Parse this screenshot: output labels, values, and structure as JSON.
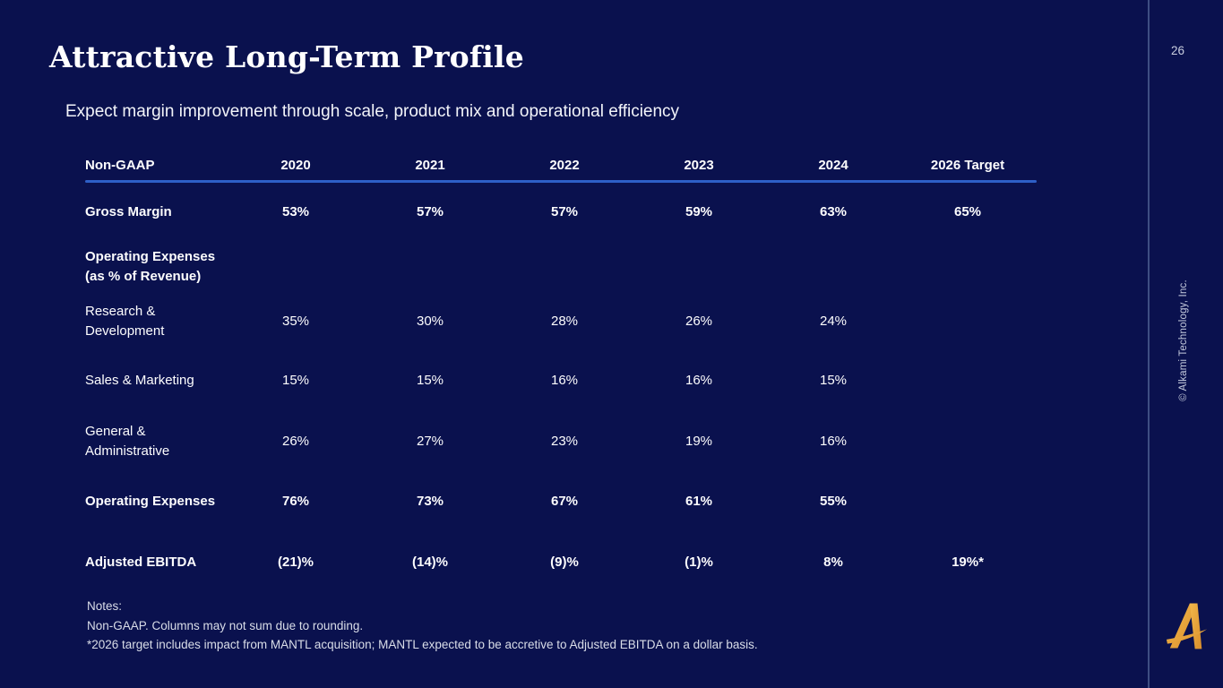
{
  "slide": {
    "title": "Attractive Long-Term Profile",
    "subtitle": "Expect margin improvement through scale, product mix and operational efficiency",
    "page_number": "26",
    "copyright": "© Alkami Technology, Inc.",
    "colors": {
      "background": "#0A114E",
      "header_underline": "#2E5FC7",
      "divider": "#3E4E82",
      "text": "#FFFFFF",
      "muted_text": "#D9DDE8",
      "logo_gold": "#E8A83C"
    }
  },
  "table": {
    "header": [
      "Non-GAAP",
      "2020",
      "2021",
      "2022",
      "2023",
      "2024",
      "2026 Target"
    ],
    "rows": [
      {
        "label": "Gross Margin",
        "bold": true,
        "values": [
          "53%",
          "57%",
          "57%",
          "59%",
          "63%",
          "65%"
        ]
      },
      {
        "label": "Operating Expenses\n(as % of Revenue)",
        "bold": true,
        "values": [
          "",
          "",
          "",
          "",
          "",
          ""
        ]
      },
      {
        "label": "Research &\nDevelopment",
        "bold": false,
        "values": [
          "35%",
          "30%",
          "28%",
          "26%",
          "24%",
          ""
        ]
      },
      {
        "label": "Sales & Marketing",
        "bold": false,
        "values": [
          "15%",
          "15%",
          "16%",
          "16%",
          "15%",
          ""
        ]
      },
      {
        "label": "General &\nAdministrative",
        "bold": false,
        "values": [
          "26%",
          "27%",
          "23%",
          "19%",
          "16%",
          ""
        ]
      },
      {
        "label": "Operating Expenses",
        "bold": true,
        "values": [
          "76%",
          "73%",
          "67%",
          "61%",
          "55%",
          ""
        ]
      },
      {
        "label": "Adjusted EBITDA",
        "bold": true,
        "values": [
          "(21)%",
          "(14)%",
          "(9)%",
          "(1)%",
          "8%",
          "19%*"
        ]
      }
    ]
  },
  "notes": {
    "heading": "Notes:",
    "lines": [
      "Non-GAAP. Columns may not sum due to rounding.",
      "*2026 target includes impact from MANTL acquisition; MANTL expected to be accretive to Adjusted EBITDA on a dollar basis."
    ]
  }
}
